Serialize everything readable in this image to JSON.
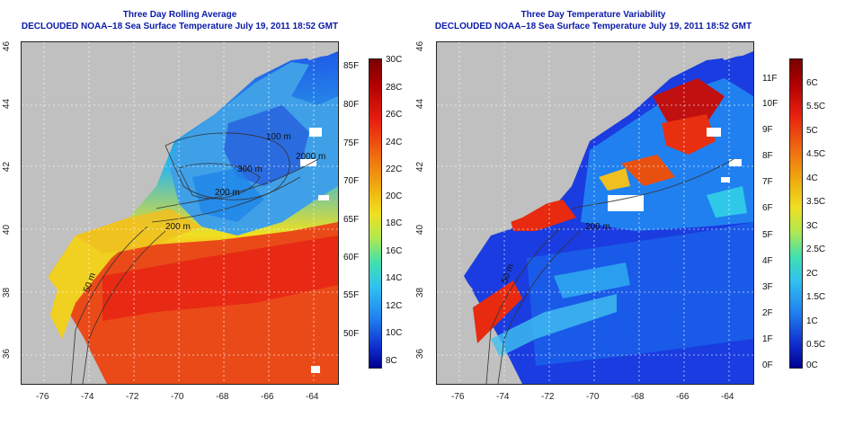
{
  "left": {
    "title_line1": "Three Day Rolling Average",
    "title_line2": "DECLOUDED NOAA–18 Sea Surface Temperature July 19, 2011 18:52 GMT",
    "x_ticks": [
      "-76",
      "-74",
      "-72",
      "-70",
      "-68",
      "-66",
      "-64"
    ],
    "y_ticks": [
      "46",
      "44",
      "42",
      "40",
      "38",
      "36"
    ],
    "fahrenheit_labels": [
      "85F",
      "80F",
      "75F",
      "70F",
      "65F",
      "60F",
      "55F",
      "50F"
    ],
    "celsius_labels": [
      "30C",
      "28C",
      "26C",
      "24C",
      "22C",
      "20C",
      "18C",
      "16C",
      "14C",
      "12C",
      "10C",
      "8C"
    ],
    "contour_labels": [
      "100 m",
      "200 m",
      "300 m",
      "2000 m",
      "200 m",
      "50 m"
    ]
  },
  "right": {
    "title_line1": "Three Day Temperature Variability",
    "title_line2": "DECLOUDED NOAA–18 Sea Surface Temperature July 19, 2011 18:52 GMT",
    "x_ticks": [
      "-76",
      "-74",
      "-72",
      "-70",
      "-68",
      "-66",
      "-64"
    ],
    "y_ticks": [
      "46",
      "44",
      "42",
      "40",
      "38",
      "36"
    ],
    "fahrenheit_labels": [
      "11F",
      "10F",
      "9F",
      "8F",
      "7F",
      "6F",
      "5F",
      "4F",
      "3F",
      "2F",
      "1F",
      "0F"
    ],
    "celsius_labels": [
      "6C",
      "5.5C",
      "5C",
      "4.5C",
      "4C",
      "3.5C",
      "3C",
      "2.5C",
      "2C",
      "1.5C",
      "1C",
      "0.5C",
      "0C"
    ],
    "contour_labels": [
      "50 m",
      "200 m"
    ]
  },
  "colors": {
    "title": "#0a1aa8",
    "land": "#c0c0c0",
    "warm": "#e8301a",
    "cool": "#1a6ae8"
  }
}
